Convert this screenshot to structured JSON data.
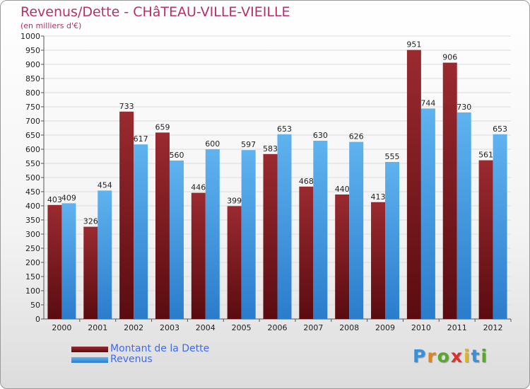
{
  "header": {
    "title": "Revenus/Dette - CHâTEAU-VILLE-VIEILLE",
    "subtitle": "(en milliers d'€)"
  },
  "colors": {
    "debt": "#7a1e22",
    "revenue": "#3f9be2",
    "title": "#b5306b",
    "legend_text": "#3d6bf0"
  },
  "chart_data": {
    "type": "bar",
    "categories": [
      "2000",
      "2001",
      "2002",
      "2003",
      "2004",
      "2005",
      "2006",
      "2007",
      "2008",
      "2009",
      "2010",
      "2011",
      "2012"
    ],
    "series": [
      {
        "name": "Montant de la Dette",
        "values": [
          403,
          326,
          733,
          659,
          446,
          399,
          583,
          468,
          440,
          413,
          951,
          906,
          561
        ]
      },
      {
        "name": "Revenus",
        "values": [
          409,
          454,
          617,
          560,
          600,
          597,
          653,
          630,
          626,
          555,
          744,
          730,
          653
        ]
      }
    ],
    "ylim": [
      0,
      1000
    ],
    "yticks": [
      0,
      50,
      100,
      150,
      200,
      250,
      300,
      350,
      400,
      450,
      500,
      550,
      600,
      650,
      700,
      750,
      800,
      850,
      900,
      950,
      1000
    ],
    "grid": true,
    "legend_position": "bottom-left"
  },
  "legend": {
    "items": [
      {
        "label": "Montant de la Dette",
        "icon": "dark-red-swatch"
      },
      {
        "label": "Revenus",
        "icon": "blue-swatch"
      }
    ]
  },
  "logo": {
    "letters": [
      "P",
      "r",
      "o",
      "x",
      "i",
      "t",
      "i"
    ],
    "colors": [
      "#3a8fd6",
      "#e0841e",
      "#58a82c",
      "#d8342c",
      "#e0b41e",
      "#3a8fd6",
      "#58a82c"
    ]
  }
}
